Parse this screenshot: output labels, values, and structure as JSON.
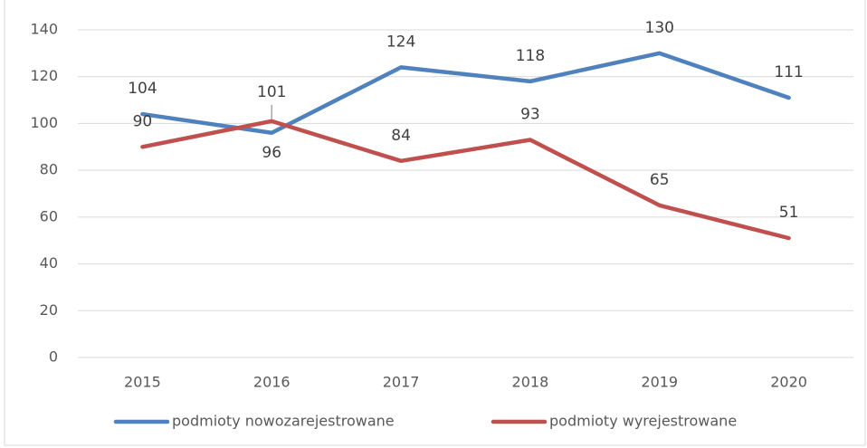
{
  "chart_data": {
    "type": "line",
    "categories": [
      "2015",
      "2016",
      "2017",
      "2018",
      "2019",
      "2020"
    ],
    "series": [
      {
        "name": "podmioty nowozarejestrowane",
        "color": "#4f81bd",
        "values": [
          104,
          96,
          124,
          118,
          130,
          111
        ]
      },
      {
        "name": "podmioty wyrejestrowane",
        "color": "#c0504d",
        "values": [
          90,
          101,
          84,
          93,
          65,
          51
        ]
      }
    ],
    "ylim": [
      0,
      140
    ],
    "yticks": [
      0,
      20,
      40,
      60,
      80,
      100,
      120,
      140
    ],
    "grid": true,
    "legend": "bottom"
  }
}
